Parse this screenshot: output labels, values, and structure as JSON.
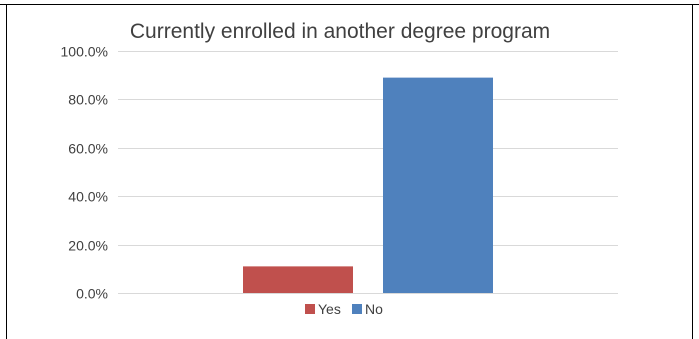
{
  "chart_data": {
    "type": "bar",
    "title": "Currently enrolled in another degree program",
    "xlabel": "",
    "ylabel": "",
    "ylim": [
      0,
      100
    ],
    "ytick_values": [
      0,
      20,
      40,
      60,
      80,
      100
    ],
    "yticks": [
      "0.0%",
      "20.0%",
      "40.0%",
      "60.0%",
      "80.0%",
      "100.0%"
    ],
    "grid": true,
    "legend_position": "bottom",
    "series": [
      {
        "name": "Yes",
        "color": "#c0504d",
        "values": [
          11
        ]
      },
      {
        "name": "No",
        "color": "#4f81bd",
        "values": [
          89
        ]
      }
    ]
  }
}
